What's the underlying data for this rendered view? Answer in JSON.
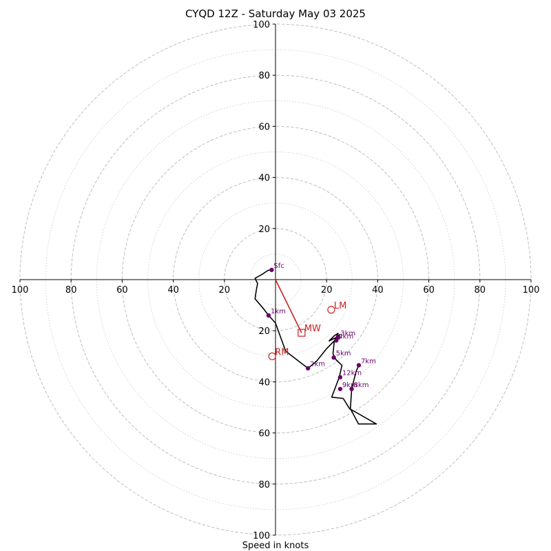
{
  "chart_data": {
    "type": "scatter",
    "title": "CYQD 12Z - Saturday May 03 2025",
    "xlabel": "Speed in knots",
    "ylabel": "",
    "xlim": [
      -100,
      100
    ],
    "ylim": [
      -100,
      100
    ],
    "range_rings_dashed": [
      20,
      40,
      60,
      80,
      100
    ],
    "range_rings_dotted": [
      10,
      30,
      50,
      70,
      90
    ],
    "tick_labels": [
      "20",
      "40",
      "60",
      "80",
      "100"
    ],
    "colors": {
      "trace": "#000000",
      "height_marker": "#6b006b",
      "storm_motion": "#cc1f1f",
      "rings": "#bdbdbd"
    },
    "hodograph_trace": [
      [
        -1.5,
        3.8
      ],
      [
        -3,
        3.6
      ],
      [
        -5,
        2.2
      ],
      [
        -8,
        0.5
      ],
      [
        -7,
        -1.5
      ],
      [
        -7.5,
        -4
      ],
      [
        -8,
        -7.5
      ],
      [
        -5,
        -11
      ],
      [
        -2.7,
        -14
      ],
      [
        0,
        -17
      ],
      [
        4,
        -28
      ],
      [
        12.7,
        -34.7
      ],
      [
        16,
        -32
      ],
      [
        20,
        -27
      ],
      [
        23,
        -24
      ],
      [
        25,
        -21.5
      ],
      [
        24,
        -22.5
      ],
      [
        21,
        -24
      ],
      [
        23,
        -22
      ],
      [
        24.5,
        -21
      ],
      [
        23,
        -24.2
      ],
      [
        22.5,
        -29
      ],
      [
        23.8,
        -31.5
      ],
      [
        26,
        -33.5
      ],
      [
        25,
        -38
      ],
      [
        22,
        -46
      ],
      [
        26.5,
        -46.5
      ],
      [
        29,
        -50.5
      ],
      [
        39.5,
        -56.5
      ],
      [
        32.5,
        -56.5
      ],
      [
        29.3,
        -50.5
      ],
      [
        29.8,
        -42.8
      ],
      [
        31.5,
        -36
      ],
      [
        32.6,
        -33.5
      ]
    ],
    "height_markers": [
      {
        "label": "Sfc",
        "x": -1.5,
        "y": 3.8
      },
      {
        "label": "1km",
        "x": -2.7,
        "y": -14
      },
      {
        "label": "2km",
        "x": 12.7,
        "y": -34.7
      },
      {
        "label": "3km",
        "x": 24.6,
        "y": -22.6
      },
      {
        "label": "4km",
        "x": 23.8,
        "y": -23.8
      },
      {
        "label": "5km",
        "x": 22.8,
        "y": -30.5
      },
      {
        "label": "7km",
        "x": 32.6,
        "y": -33.5
      },
      {
        "label": "12km",
        "x": 25.3,
        "y": -38.2
      },
      {
        "label": "9km",
        "x": 25.3,
        "y": -42.8
      },
      {
        "label": "8km",
        "x": 29.8,
        "y": -42.8
      }
    ],
    "storm_motion": [
      {
        "label": "LM",
        "x": 21.8,
        "y": -11.8,
        "marker": "circle"
      },
      {
        "label": "MW",
        "x": 10.2,
        "y": -20.8,
        "marker": "square"
      },
      {
        "label": "RM",
        "x": -1.3,
        "y": -30,
        "marker": "circle"
      }
    ],
    "mean_wind_vector": {
      "x": 10.2,
      "y": -20.8
    }
  }
}
